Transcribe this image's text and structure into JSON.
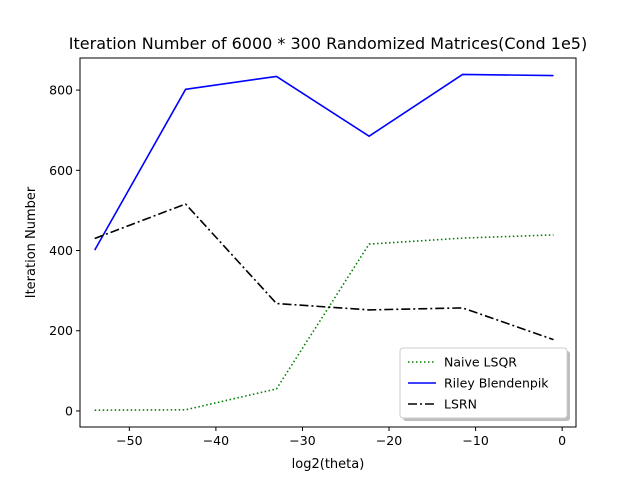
{
  "chart_data": {
    "type": "line",
    "title": "Iteration Number of 6000 * 300 Randomized Matrices(Cond 1e5)",
    "xlabel": "log2(theta)",
    "ylabel": "Iteration Number",
    "xlim": [
      -55.7,
      1.6
    ],
    "ylim": [
      -40,
      880
    ],
    "xticks": [
      -50,
      -40,
      -30,
      -20,
      -10,
      0
    ],
    "xtick_labels": [
      "−50",
      "−40",
      "−30",
      "−20",
      "−10",
      "0"
    ],
    "yticks": [
      0,
      200,
      400,
      600,
      800
    ],
    "ytick_labels": [
      "0",
      "200",
      "400",
      "600",
      "800"
    ],
    "grid": false,
    "legend_position": "lower-right",
    "x": [
      -54,
      -43.5,
      -33,
      -22.3,
      -11.5,
      -1
    ],
    "series": [
      {
        "name": "Naive LSQR",
        "values": [
          2,
          3,
          55,
          416,
          431,
          439
        ],
        "color": "#008000",
        "style": "dotted"
      },
      {
        "name": "Riley Blendenpik",
        "values": [
          401,
          802,
          834,
          685,
          839,
          836
        ],
        "color": "#0000ff",
        "style": "solid"
      },
      {
        "name": "LSRN",
        "values": [
          430,
          516,
          268,
          252,
          257,
          178
        ],
        "color": "#000000",
        "style": "dashdot"
      }
    ]
  }
}
